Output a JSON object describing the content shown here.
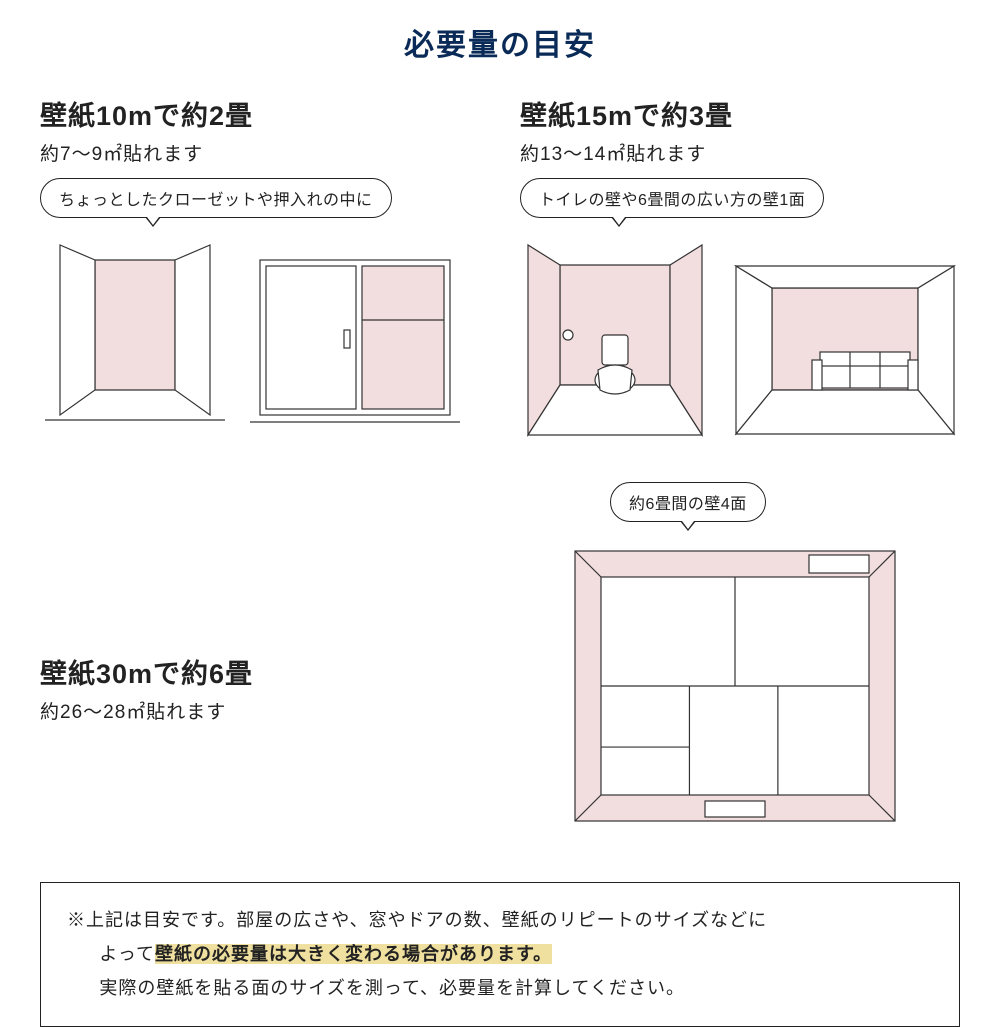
{
  "title": {
    "text": "必要量の目安",
    "color": "#0a2b57",
    "fontsize": 30
  },
  "sections": {
    "s10": {
      "heading": "壁紙10mで約2畳",
      "sub": "約7〜9㎡貼れます",
      "bubble": "ちょっとしたクローゼットや押入れの中に"
    },
    "s15": {
      "heading": "壁紙15mで約3畳",
      "sub": "約13〜14㎡貼れます",
      "bubble": "トイレの壁や6畳間の広い方の壁1面"
    },
    "s30": {
      "heading": "壁紙30mで約6畳",
      "sub": "約26〜28㎡貼れます",
      "bubble": "約6畳間の壁4面"
    }
  },
  "note": {
    "line1": "※上記は目安です。部屋の広さや、窓やドアの数、壁紙のリピートのサイズなどに",
    "line2a": "よって",
    "line2b_hl": "壁紙の必要量は大きく変わる場合があります。",
    "line3": "実際の壁紙を貼る面のサイズを測って、必要量を計算してください。"
  },
  "style": {
    "heading_fontsize": 27,
    "heading_color": "#222222",
    "sub_fontsize": 19,
    "sub_color": "#222222",
    "bubble_fontsize": 16,
    "note_fontsize": 18,
    "highlight_bg": "#f0e0a0",
    "highlight_color": "#222222",
    "highlight_weight": 700,
    "illus_fill": "#f2dede",
    "illus_stroke": "#333333",
    "illus_stroke_width": 1.2,
    "bg": "#ffffff"
  }
}
